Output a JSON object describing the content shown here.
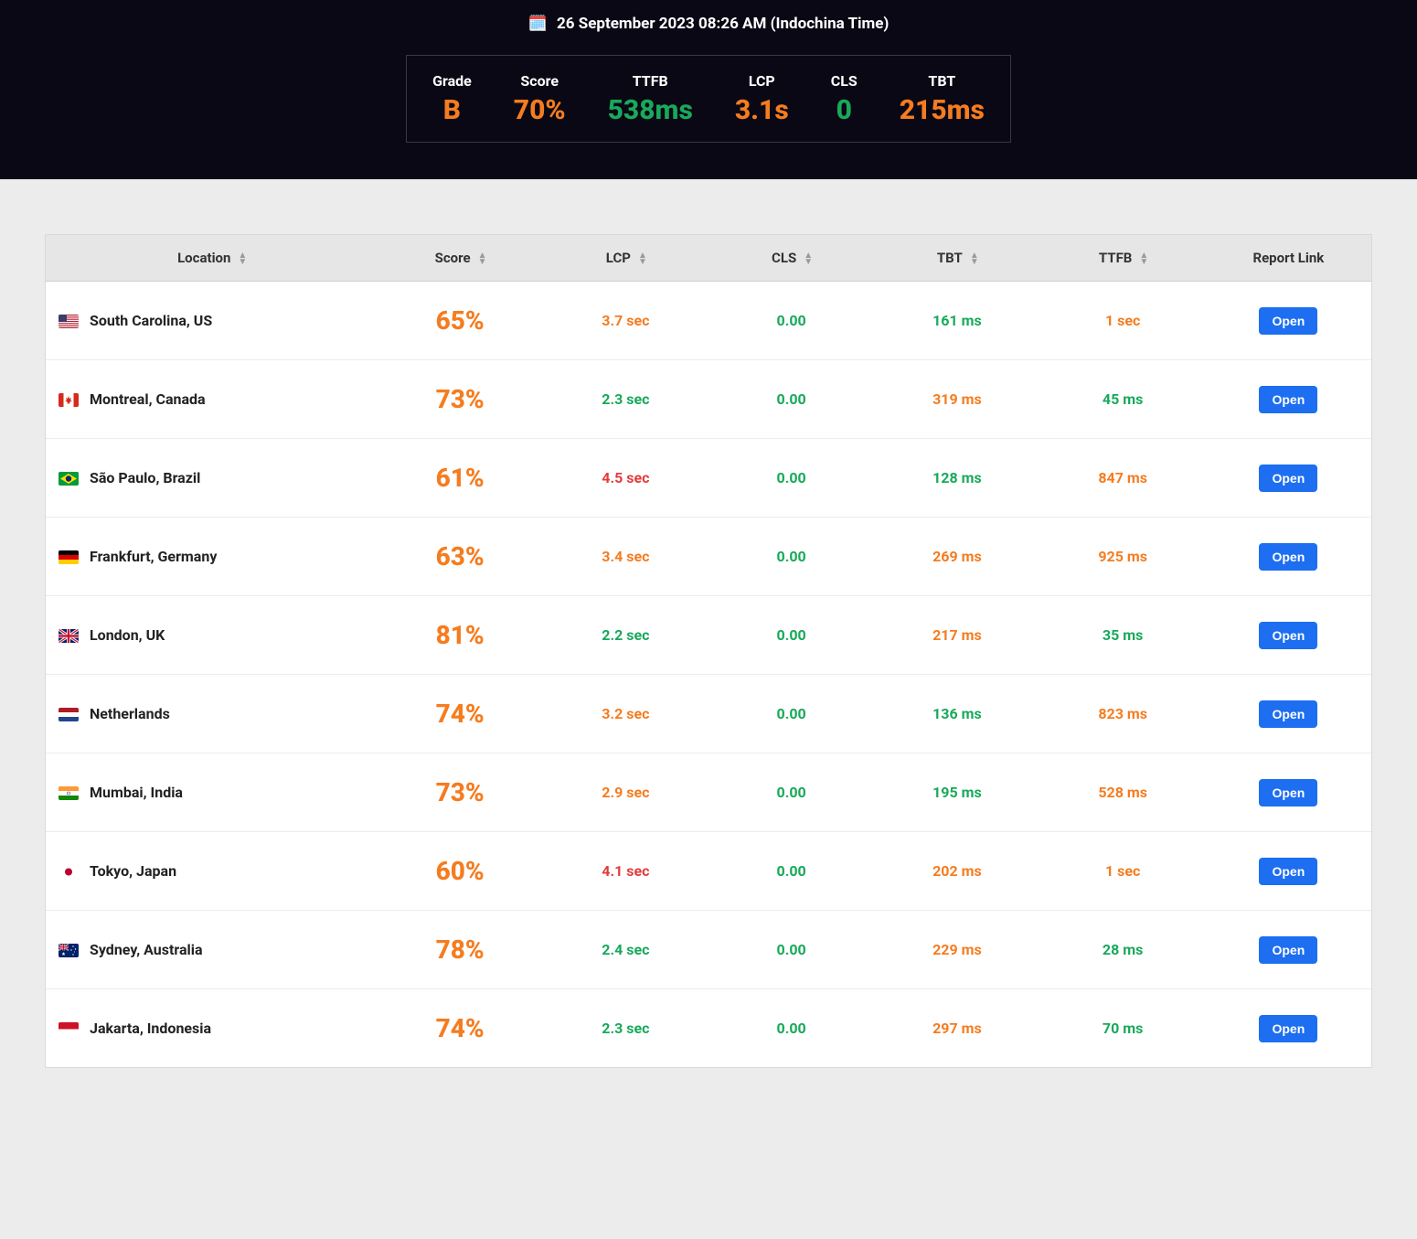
{
  "colors": {
    "orange": "#f57c1f",
    "green": "#18a95a",
    "red": "#e23c3c",
    "blue": "#1d6ef0",
    "top_bg": "#0b0815",
    "page_bg": "#ececec",
    "header_bg": "#e6e6e6"
  },
  "timestamp": {
    "icon": "🗓️",
    "text": "26 September 2023 08:26 AM (Indochina Time)"
  },
  "summary": [
    {
      "label": "Grade",
      "value": "B",
      "color": "orange"
    },
    {
      "label": "Score",
      "value": "70%",
      "color": "orange"
    },
    {
      "label": "TTFB",
      "value": "538ms",
      "color": "green"
    },
    {
      "label": "LCP",
      "value": "3.1s",
      "color": "orange"
    },
    {
      "label": "CLS",
      "value": "0",
      "color": "green"
    },
    {
      "label": "TBT",
      "value": "215ms",
      "color": "orange"
    }
  ],
  "table": {
    "headers": {
      "location": "Location",
      "score": "Score",
      "lcp": "LCP",
      "cls": "CLS",
      "tbt": "TBT",
      "ttfb": "TTFB",
      "report": "Report Link"
    },
    "open_label": "Open",
    "rows": [
      {
        "flag": "us",
        "location": "South Carolina, US",
        "score": {
          "text": "65%",
          "color": "orange"
        },
        "lcp": {
          "text": "3.7 sec",
          "color": "orange"
        },
        "cls": {
          "text": "0.00",
          "color": "green"
        },
        "tbt": {
          "text": "161 ms",
          "color": "green"
        },
        "ttfb": {
          "text": "1 sec",
          "color": "orange"
        }
      },
      {
        "flag": "ca",
        "location": "Montreal, Canada",
        "score": {
          "text": "73%",
          "color": "orange"
        },
        "lcp": {
          "text": "2.3 sec",
          "color": "green"
        },
        "cls": {
          "text": "0.00",
          "color": "green"
        },
        "tbt": {
          "text": "319 ms",
          "color": "orange"
        },
        "ttfb": {
          "text": "45 ms",
          "color": "green"
        }
      },
      {
        "flag": "br",
        "location": "São Paulo, Brazil",
        "score": {
          "text": "61%",
          "color": "orange"
        },
        "lcp": {
          "text": "4.5 sec",
          "color": "red"
        },
        "cls": {
          "text": "0.00",
          "color": "green"
        },
        "tbt": {
          "text": "128 ms",
          "color": "green"
        },
        "ttfb": {
          "text": "847 ms",
          "color": "orange"
        }
      },
      {
        "flag": "de",
        "location": "Frankfurt, Germany",
        "score": {
          "text": "63%",
          "color": "orange"
        },
        "lcp": {
          "text": "3.4 sec",
          "color": "orange"
        },
        "cls": {
          "text": "0.00",
          "color": "green"
        },
        "tbt": {
          "text": "269 ms",
          "color": "orange"
        },
        "ttfb": {
          "text": "925 ms",
          "color": "orange"
        }
      },
      {
        "flag": "gb",
        "location": "London, UK",
        "score": {
          "text": "81%",
          "color": "orange"
        },
        "lcp": {
          "text": "2.2 sec",
          "color": "green"
        },
        "cls": {
          "text": "0.00",
          "color": "green"
        },
        "tbt": {
          "text": "217 ms",
          "color": "orange"
        },
        "ttfb": {
          "text": "35 ms",
          "color": "green"
        }
      },
      {
        "flag": "nl",
        "location": "Netherlands",
        "score": {
          "text": "74%",
          "color": "orange"
        },
        "lcp": {
          "text": "3.2 sec",
          "color": "orange"
        },
        "cls": {
          "text": "0.00",
          "color": "green"
        },
        "tbt": {
          "text": "136 ms",
          "color": "green"
        },
        "ttfb": {
          "text": "823 ms",
          "color": "orange"
        }
      },
      {
        "flag": "in",
        "location": "Mumbai, India",
        "score": {
          "text": "73%",
          "color": "orange"
        },
        "lcp": {
          "text": "2.9 sec",
          "color": "orange"
        },
        "cls": {
          "text": "0.00",
          "color": "green"
        },
        "tbt": {
          "text": "195 ms",
          "color": "green"
        },
        "ttfb": {
          "text": "528 ms",
          "color": "orange"
        }
      },
      {
        "flag": "jp",
        "location": "Tokyo, Japan",
        "score": {
          "text": "60%",
          "color": "orange"
        },
        "lcp": {
          "text": "4.1 sec",
          "color": "red"
        },
        "cls": {
          "text": "0.00",
          "color": "green"
        },
        "tbt": {
          "text": "202 ms",
          "color": "orange"
        },
        "ttfb": {
          "text": "1 sec",
          "color": "orange"
        }
      },
      {
        "flag": "au",
        "location": "Sydney, Australia",
        "score": {
          "text": "78%",
          "color": "orange"
        },
        "lcp": {
          "text": "2.4 sec",
          "color": "green"
        },
        "cls": {
          "text": "0.00",
          "color": "green"
        },
        "tbt": {
          "text": "229 ms",
          "color": "orange"
        },
        "ttfb": {
          "text": "28 ms",
          "color": "green"
        }
      },
      {
        "flag": "id",
        "location": "Jakarta, Indonesia",
        "score": {
          "text": "74%",
          "color": "orange"
        },
        "lcp": {
          "text": "2.3 sec",
          "color": "green"
        },
        "cls": {
          "text": "0.00",
          "color": "green"
        },
        "tbt": {
          "text": "297 ms",
          "color": "orange"
        },
        "ttfb": {
          "text": "70 ms",
          "color": "green"
        }
      }
    ]
  }
}
